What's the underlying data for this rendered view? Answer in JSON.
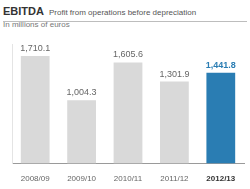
{
  "chart_data": {
    "type": "bar",
    "title": "EBITDA",
    "subtitle": "Profit from operations before depreciation",
    "ylabel": "In millions of euros",
    "categories": [
      "2008/09",
      "2009/10",
      "2010/11",
      "2011/12",
      "2012/13"
    ],
    "values": [
      1710.1,
      1004.3,
      1605.6,
      1301.9,
      1441.8
    ],
    "value_labels": [
      "1,710.1",
      "1,004.3",
      "1,605.6",
      "1,301.9",
      "1,441.8"
    ],
    "colors": [
      "#d9d9d9",
      "#d9d9d9",
      "#d9d9d9",
      "#d9d9d9",
      "#2a7db3"
    ],
    "ylim": [
      0,
      1900
    ],
    "grid": false,
    "data_labels": true,
    "tick_labels": "x",
    "legend": null
  }
}
